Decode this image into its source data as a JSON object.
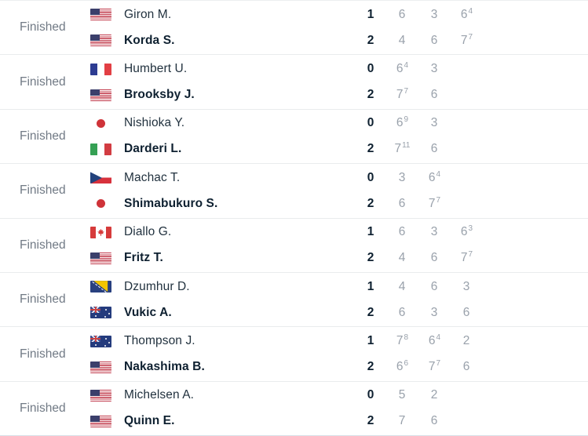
{
  "list": {
    "status_label": "Finished"
  },
  "colors": {
    "status_text": "#717a85",
    "player_text": "#22323f",
    "winner_text": "#0e2030",
    "set_score_text": "#99a1ab",
    "separator": "#e9eced"
  },
  "matches": [
    {
      "status": "Finished",
      "players": [
        {
          "flag": "us",
          "flag_name": "usa-flag",
          "name": "Giron M.",
          "sets_won": "1",
          "winner": false,
          "sets": [
            {
              "games": "6"
            },
            {
              "games": "3"
            },
            {
              "games": "6",
              "tiebreak": "4"
            }
          ]
        },
        {
          "flag": "us",
          "flag_name": "usa-flag",
          "name": "Korda S.",
          "sets_won": "2",
          "winner": true,
          "sets": [
            {
              "games": "4"
            },
            {
              "games": "6"
            },
            {
              "games": "7",
              "tiebreak": "7"
            }
          ]
        }
      ]
    },
    {
      "status": "Finished",
      "players": [
        {
          "flag": "fr",
          "flag_name": "france-flag",
          "name": "Humbert U.",
          "sets_won": "0",
          "winner": false,
          "sets": [
            {
              "games": "6",
              "tiebreak": "4"
            },
            {
              "games": "3"
            }
          ]
        },
        {
          "flag": "us",
          "flag_name": "usa-flag",
          "name": "Brooksby J.",
          "sets_won": "2",
          "winner": true,
          "sets": [
            {
              "games": "7",
              "tiebreak": "7"
            },
            {
              "games": "6"
            }
          ]
        }
      ]
    },
    {
      "status": "Finished",
      "players": [
        {
          "flag": "jp",
          "flag_name": "japan-flag",
          "name": "Nishioka Y.",
          "sets_won": "0",
          "winner": false,
          "sets": [
            {
              "games": "6",
              "tiebreak": "9"
            },
            {
              "games": "3"
            }
          ]
        },
        {
          "flag": "it",
          "flag_name": "italy-flag",
          "name": "Darderi L.",
          "sets_won": "2",
          "winner": true,
          "sets": [
            {
              "games": "7",
              "tiebreak": "11"
            },
            {
              "games": "6"
            }
          ]
        }
      ]
    },
    {
      "status": "Finished",
      "players": [
        {
          "flag": "cz",
          "flag_name": "czechia-flag",
          "name": "Machac T.",
          "sets_won": "0",
          "winner": false,
          "sets": [
            {
              "games": "3"
            },
            {
              "games": "6",
              "tiebreak": "4"
            }
          ]
        },
        {
          "flag": "jp",
          "flag_name": "japan-flag",
          "name": "Shimabukuro S.",
          "sets_won": "2",
          "winner": true,
          "sets": [
            {
              "games": "6"
            },
            {
              "games": "7",
              "tiebreak": "7"
            }
          ]
        }
      ]
    },
    {
      "status": "Finished",
      "players": [
        {
          "flag": "ca",
          "flag_name": "canada-flag",
          "name": "Diallo G.",
          "sets_won": "1",
          "winner": false,
          "sets": [
            {
              "games": "6"
            },
            {
              "games": "3"
            },
            {
              "games": "6",
              "tiebreak": "3"
            }
          ]
        },
        {
          "flag": "us",
          "flag_name": "usa-flag",
          "name": "Fritz T.",
          "sets_won": "2",
          "winner": true,
          "sets": [
            {
              "games": "4"
            },
            {
              "games": "6"
            },
            {
              "games": "7",
              "tiebreak": "7"
            }
          ]
        }
      ]
    },
    {
      "status": "Finished",
      "players": [
        {
          "flag": "ba",
          "flag_name": "bosnia-flag",
          "name": "Dzumhur D.",
          "sets_won": "1",
          "winner": false,
          "sets": [
            {
              "games": "4"
            },
            {
              "games": "6"
            },
            {
              "games": "3"
            }
          ]
        },
        {
          "flag": "au",
          "flag_name": "australia-flag",
          "name": "Vukic A.",
          "sets_won": "2",
          "winner": true,
          "sets": [
            {
              "games": "6"
            },
            {
              "games": "3"
            },
            {
              "games": "6"
            }
          ]
        }
      ]
    },
    {
      "status": "Finished",
      "players": [
        {
          "flag": "au",
          "flag_name": "australia-flag",
          "name": "Thompson J.",
          "sets_won": "1",
          "winner": false,
          "sets": [
            {
              "games": "7",
              "tiebreak": "8"
            },
            {
              "games": "6",
              "tiebreak": "4"
            },
            {
              "games": "2"
            }
          ]
        },
        {
          "flag": "us",
          "flag_name": "usa-flag",
          "name": "Nakashima B.",
          "sets_won": "2",
          "winner": true,
          "sets": [
            {
              "games": "6",
              "tiebreak": "6"
            },
            {
              "games": "7",
              "tiebreak": "7"
            },
            {
              "games": "6"
            }
          ]
        }
      ]
    },
    {
      "status": "Finished",
      "players": [
        {
          "flag": "us",
          "flag_name": "usa-flag",
          "name": "Michelsen A.",
          "sets_won": "0",
          "winner": false,
          "sets": [
            {
              "games": "5"
            },
            {
              "games": "2"
            }
          ]
        },
        {
          "flag": "us",
          "flag_name": "usa-flag",
          "name": "Quinn E.",
          "sets_won": "2",
          "winner": true,
          "sets": [
            {
              "games": "7"
            },
            {
              "games": "6"
            }
          ]
        }
      ]
    }
  ]
}
